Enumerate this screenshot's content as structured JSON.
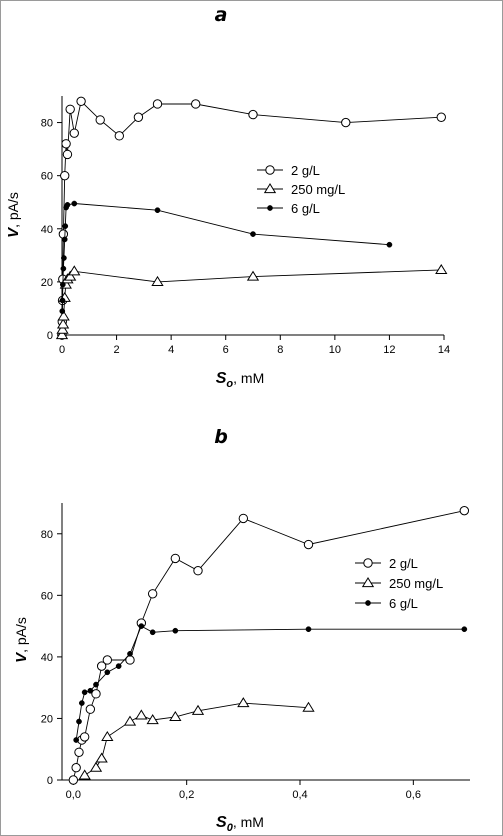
{
  "chart_data": [
    {
      "type": "scatter",
      "panel_label": "a",
      "xlabel": {
        "symbol": "S",
        "sub": "o",
        "unit": ",  mM"
      },
      "ylabel": {
        "symbol": "V",
        "unit": ",  pA/s"
      },
      "xlim": [
        0,
        14
      ],
      "ylim": [
        0,
        90
      ],
      "xticks": [
        0,
        2,
        4,
        6,
        8,
        10,
        12,
        14
      ],
      "xtick_labels": [
        "0",
        "2",
        "4",
        "6",
        "8",
        "10",
        "12",
        "14"
      ],
      "yticks": [
        0,
        20,
        40,
        60,
        80
      ],
      "ytick_labels": [
        "0",
        "20",
        "40",
        "60",
        "80"
      ],
      "legend_position": "right",
      "series": [
        {
          "name": "2 g/L",
          "marker": "open-circle",
          "x": [
            0,
            0.01,
            0.02,
            0.03,
            0.05,
            0.1,
            0.15,
            0.2,
            0.3,
            0.45,
            0.7,
            1.4,
            2.1,
            2.8,
            3.5,
            4.9,
            7.0,
            10.4,
            13.9
          ],
          "y": [
            0,
            5,
            13,
            21,
            38,
            60,
            72,
            68,
            85,
            76,
            88,
            81,
            75,
            82,
            87,
            87,
            83,
            80,
            82
          ]
        },
        {
          "name": "250 mg/L",
          "marker": "open-triangle",
          "x": [
            0,
            0.02,
            0.04,
            0.06,
            0.1,
            0.14,
            0.2,
            0.3,
            0.45,
            3.5,
            7.0,
            13.9
          ],
          "y": [
            0,
            2,
            4,
            7,
            14,
            19,
            21,
            22,
            24,
            20,
            22,
            24.5
          ]
        },
        {
          "name": "6 g/L",
          "marker": "filled-circle",
          "x": [
            0.01,
            0.02,
            0.03,
            0.05,
            0.07,
            0.1,
            0.12,
            0.15,
            0.2,
            0.45,
            3.5,
            7.0,
            12.0
          ],
          "y": [
            9,
            13,
            19,
            25,
            29,
            36,
            41,
            48,
            49,
            49.5,
            47,
            38,
            34
          ]
        }
      ]
    },
    {
      "type": "scatter",
      "panel_label": "b",
      "xlabel": {
        "symbol": "S",
        "sub": "0",
        "unit": ",  mM"
      },
      "ylabel": {
        "symbol": "V",
        "unit": ",  pA/s"
      },
      "xlim": [
        -0.02,
        0.7
      ],
      "ylim": [
        0,
        90
      ],
      "xticks": [
        0,
        0.2,
        0.4,
        0.6
      ],
      "xtick_labels": [
        "0,0",
        "0,2",
        "0,4",
        "0,6"
      ],
      "yticks": [
        0,
        20,
        40,
        60,
        80
      ],
      "ytick_labels": [
        "0",
        "20",
        "40",
        "60",
        "80"
      ],
      "legend_position": "right",
      "series": [
        {
          "name": "2 g/L",
          "marker": "open-circle",
          "x": [
            0.0,
            0.005,
            0.01,
            0.015,
            0.02,
            0.03,
            0.04,
            0.05,
            0.06,
            0.1,
            0.12,
            0.14,
            0.18,
            0.22,
            0.3,
            0.415,
            0.69
          ],
          "y": [
            0,
            4,
            9,
            13,
            14,
            23,
            28,
            37,
            39,
            39,
            51,
            60.5,
            72,
            68,
            85,
            76.5,
            87.5
          ]
        },
        {
          "name": "250 mg/L",
          "marker": "open-triangle",
          "x": [
            0.02,
            0.04,
            0.05,
            0.06,
            0.1,
            0.12,
            0.14,
            0.18,
            0.22,
            0.3,
            0.415
          ],
          "y": [
            1.5,
            4,
            7,
            14,
            19,
            21,
            19.5,
            20.5,
            22.5,
            25,
            23.5
          ]
        },
        {
          "name": "6 g/L",
          "marker": "filled-circle",
          "x": [
            0.005,
            0.01,
            0.015,
            0.02,
            0.03,
            0.04,
            0.06,
            0.08,
            0.1,
            0.12,
            0.14,
            0.18,
            0.415,
            0.69
          ],
          "y": [
            13,
            19,
            25,
            28.5,
            29,
            31,
            35,
            37,
            41,
            50,
            48,
            48.5,
            49,
            49
          ]
        }
      ]
    }
  ]
}
